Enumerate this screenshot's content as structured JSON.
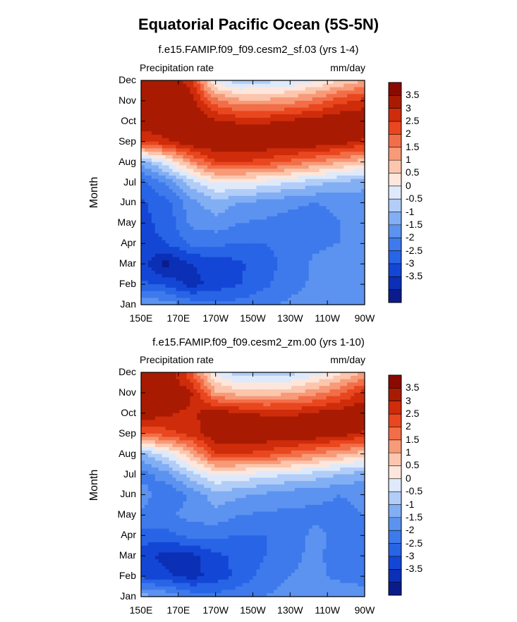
{
  "figure": {
    "title": "Equatorial Pacific Ocean (5S-5N)"
  },
  "chart_data": [
    {
      "type": "heatmap",
      "title": "f.e15.FAMIP.f09_f09.cesm2_sf.03 (yrs 1-4)",
      "left_label": "Precipitation rate",
      "right_label": "mm/day",
      "ylabel": "Month",
      "x_ticks": [
        "150E",
        "170E",
        "170W",
        "150W",
        "130W",
        "110W",
        "90W"
      ],
      "y_ticks": [
        "Jan",
        "Feb",
        "Mar",
        "Apr",
        "May",
        "Jun",
        "Jul",
        "Aug",
        "Sep",
        "Oct",
        "Nov",
        "Dec"
      ],
      "colorbar_labels": [
        "3.5",
        "3",
        "2.5",
        "2",
        "1.5",
        "1",
        "0.5",
        "0",
        "-0.5",
        "-1",
        "-1.5",
        "-2",
        "-2.5",
        "-3",
        "-3.5"
      ],
      "z": [
        [
          4.0,
          4.0,
          3.2,
          0.2,
          -0.3,
          -0.2,
          0.0,
          0.4,
          1.0,
          1.5
        ],
        [
          4.0,
          4.0,
          3.8,
          2.2,
          1.6,
          1.6,
          1.8,
          2.2,
          2.8,
          3.2
        ],
        [
          4.0,
          4.0,
          4.0,
          3.6,
          3.4,
          3.4,
          3.6,
          3.8,
          4.0,
          4.0
        ],
        [
          3.0,
          3.4,
          4.0,
          4.0,
          4.0,
          4.0,
          4.0,
          4.0,
          3.8,
          3.4
        ],
        [
          -0.8,
          0.3,
          1.8,
          3.0,
          3.0,
          2.8,
          2.4,
          2.0,
          1.6,
          1.2
        ],
        [
          -2.2,
          -1.4,
          -0.3,
          0.6,
          0.5,
          0.3,
          0.0,
          -0.3,
          -0.6,
          -0.8
        ],
        [
          -2.6,
          -2.2,
          -1.2,
          -0.7,
          -1.0,
          -1.2,
          -1.4,
          -1.5,
          -1.4,
          -1.3
        ],
        [
          -2.6,
          -2.4,
          -1.4,
          -1.2,
          -1.5,
          -1.6,
          -1.7,
          -1.7,
          -1.5,
          -1.4
        ],
        [
          -2.6,
          -2.5,
          -1.9,
          -1.9,
          -2.0,
          -2.0,
          -1.8,
          -1.6,
          -1.5,
          -1.4
        ],
        [
          -2.8,
          -3.7,
          -3.0,
          -2.8,
          -2.6,
          -2.2,
          -1.8,
          -1.4,
          -1.2,
          -1.3
        ],
        [
          -2.4,
          -2.6,
          -3.2,
          -2.8,
          -2.5,
          -2.1,
          -1.7,
          -1.4,
          -1.3,
          -1.4
        ],
        [
          -1.0,
          -1.2,
          -1.6,
          -1.9,
          -1.8,
          -1.6,
          -1.4,
          -1.2,
          -1.1,
          -1.0
        ]
      ]
    },
    {
      "type": "heatmap",
      "title": "f.e15.FAMIP.f09_f09.cesm2_zm.00 (yrs 1-10)",
      "left_label": "Precipitation rate",
      "right_label": "mm/day",
      "ylabel": "Month",
      "x_ticks": [
        "150E",
        "170E",
        "170W",
        "150W",
        "130W",
        "110W",
        "90W"
      ],
      "y_ticks": [
        "Jan",
        "Feb",
        "Mar",
        "Apr",
        "May",
        "Jun",
        "Jul",
        "Aug",
        "Sep",
        "Oct",
        "Nov",
        "Dec"
      ],
      "colorbar_labels": [
        "3.5",
        "3",
        "2.5",
        "2",
        "1.5",
        "1",
        "0.5",
        "0",
        "-0.5",
        "-1",
        "-1.5",
        "-2",
        "-2.5",
        "-3",
        "-3.5"
      ],
      "z": [
        [
          4.0,
          4.0,
          2.6,
          0.4,
          -0.4,
          -0.3,
          -0.2,
          0.2,
          0.8,
          1.6
        ],
        [
          4.0,
          4.0,
          3.6,
          1.6,
          1.2,
          1.2,
          1.4,
          1.8,
          2.4,
          3.2
        ],
        [
          4.0,
          3.6,
          3.4,
          3.8,
          3.6,
          3.4,
          3.4,
          3.6,
          3.8,
          4.0
        ],
        [
          2.4,
          2.8,
          3.2,
          4.0,
          4.0,
          4.0,
          4.0,
          4.0,
          3.8,
          3.4
        ],
        [
          -0.6,
          0.2,
          1.4,
          3.0,
          3.0,
          2.8,
          2.4,
          2.0,
          1.6,
          1.2
        ],
        [
          -1.8,
          -1.2,
          -0.2,
          0.6,
          0.4,
          0.2,
          0.0,
          -0.2,
          -0.5,
          -0.8
        ],
        [
          -1.2,
          -2.0,
          -1.4,
          -0.7,
          -0.9,
          -1.1,
          -1.3,
          -1.4,
          -1.5,
          -1.4
        ],
        [
          -1.6,
          -1.6,
          -1.3,
          -1.2,
          -1.5,
          -1.6,
          -1.6,
          -1.6,
          -1.6,
          -1.5
        ],
        [
          -2.2,
          -2.2,
          -1.8,
          -1.9,
          -2.0,
          -2.0,
          -1.7,
          -1.4,
          -1.6,
          -1.8
        ],
        [
          -2.8,
          -3.2,
          -3.2,
          -2.6,
          -2.4,
          -2.0,
          -1.6,
          -1.4,
          -1.7,
          -2.0
        ],
        [
          -2.6,
          -2.9,
          -3.2,
          -2.8,
          -2.3,
          -1.8,
          -1.5,
          -1.4,
          -1.6,
          -1.7
        ],
        [
          -0.8,
          -1.0,
          -1.6,
          -1.8,
          -1.7,
          -1.5,
          -1.3,
          -1.2,
          -1.2,
          -1.3
        ]
      ]
    }
  ],
  "colors": {
    "levels": [
      -3.5,
      -3,
      -2.5,
      -2,
      -1.5,
      -1,
      -0.5,
      0,
      0.5,
      1,
      1.5,
      2,
      2.5,
      3,
      3.5
    ],
    "palette": [
      "#0a1c8c",
      "#0b2fb5",
      "#1446d6",
      "#2864e6",
      "#3e7aec",
      "#5c93f0",
      "#82aef4",
      "#b1cdf8",
      "#deeafb",
      "#fde6dc",
      "#fbc6ad",
      "#f79a78",
      "#f26e48",
      "#e9471f",
      "#cf2c0b",
      "#a81b02",
      "#8a0a00"
    ]
  }
}
